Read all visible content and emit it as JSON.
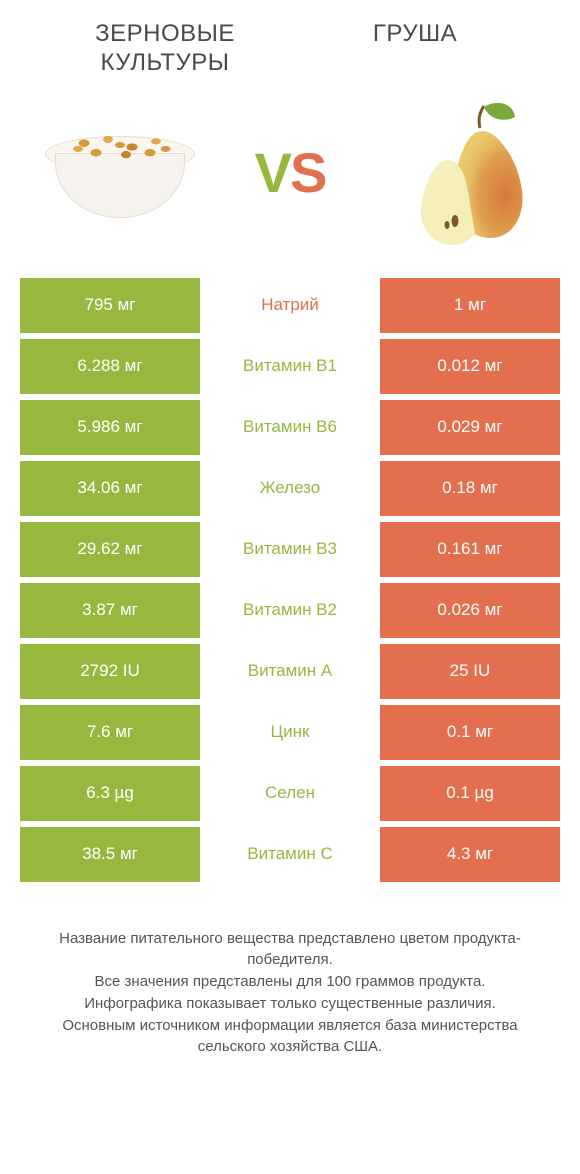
{
  "header": {
    "left_title": "ЗЕРНОВЫЕ КУЛЬТУРЫ",
    "right_title": "ГРУША",
    "vs_v": "V",
    "vs_s": "S"
  },
  "colors": {
    "green": "#97b83f",
    "orange": "#e36f4f",
    "text": "#4a4a4a",
    "footer_text": "#555555",
    "bg": "#ffffff"
  },
  "rows": [
    {
      "left": "795 мг",
      "label": "Натрий",
      "right": "1 мг",
      "winner": "orange"
    },
    {
      "left": "6.288 мг",
      "label": "Витамин B1",
      "right": "0.012 мг",
      "winner": "green"
    },
    {
      "left": "5.986 мг",
      "label": "Витамин B6",
      "right": "0.029 мг",
      "winner": "green"
    },
    {
      "left": "34.06 мг",
      "label": "Железо",
      "right": "0.18 мг",
      "winner": "green"
    },
    {
      "left": "29.62 мг",
      "label": "Витамин B3",
      "right": "0.161 мг",
      "winner": "green"
    },
    {
      "left": "3.87 мг",
      "label": "Витамин B2",
      "right": "0.026 мг",
      "winner": "green"
    },
    {
      "left": "2792 IU",
      "label": "Витамин A",
      "right": "25 IU",
      "winner": "green"
    },
    {
      "left": "7.6 мг",
      "label": "Цинк",
      "right": "0.1 мг",
      "winner": "green"
    },
    {
      "left": "6.3 µg",
      "label": "Селен",
      "right": "0.1 µg",
      "winner": "green"
    },
    {
      "left": "38.5 мг",
      "label": "Витамин C",
      "right": "4.3 мг",
      "winner": "green"
    }
  ],
  "footer": {
    "line1": "Название питательного вещества представлено цветом продукта-победителя.",
    "line2": "Все значения представлены для 100 граммов продукта.",
    "line3": "Инфографика показывает только существенные различия.",
    "line4": "Основным источником информации является база министерства сельского хозяйства США."
  }
}
